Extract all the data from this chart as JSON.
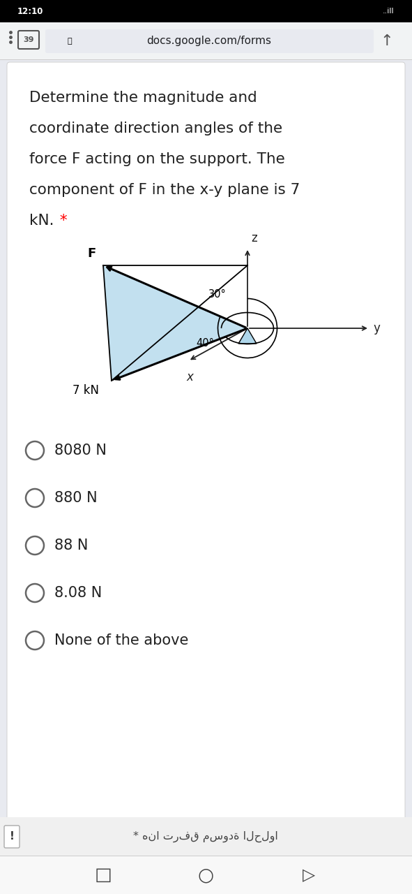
{
  "status_bar_text": "12:10",
  "url_text": "docs.google.com/forms",
  "options": [
    "8080 N",
    "880 N",
    "88 N",
    "8.08 N",
    "None of the above"
  ],
  "footer_text": "* هنا ترفق مسودة الحلوا",
  "bg_color": "#e8eaf0",
  "card_color": "#ffffff",
  "status_bar_bg": "#000000",
  "text_color": "#212121",
  "url_color": "#202124",
  "option_circle_color": "#666666",
  "diagram_fill_color": "#aed6ea",
  "axis_color": "#222222",
  "label_F": "F",
  "label_7kN": "7 kN",
  "label_x": "x",
  "label_y": "y",
  "label_z": "z",
  "label_30deg": "30°",
  "label_40deg": "40°",
  "question_lines": [
    "Determine the magnitude and",
    "coordinate direction angles of the",
    "force F acting on the support. The",
    "component of F in the x-y plane is 7",
    "kN."
  ]
}
